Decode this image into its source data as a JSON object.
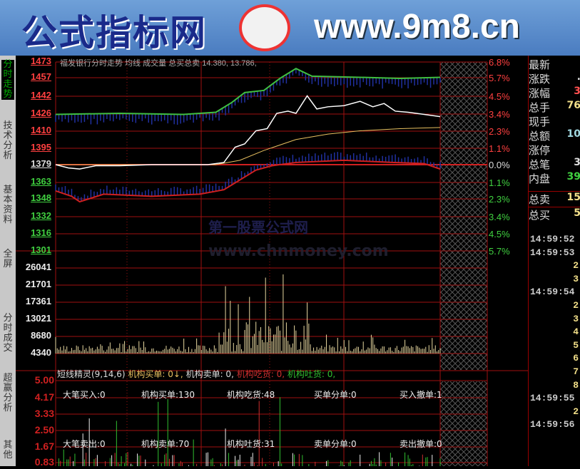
{
  "banner": {
    "site_name": "公式指标网",
    "url": "www.9m8.cn"
  },
  "watermark": {
    "line1": "第一股票公式网",
    "line2": "www.chnmoney.com"
  },
  "sidebar": {
    "tabs": [
      "分时走势",
      "技术分析",
      "基本资料",
      "全屏",
      "分时成交",
      "超赢分析",
      "其他"
    ]
  },
  "price_pane": {
    "header": "福发银行分时走势 均线 成交量 总买总卖 14.380, 13.786,",
    "prev_close": 1379,
    "price_ticks": [
      "1473",
      "1457",
      "1442",
      "1426",
      "1410",
      "1395",
      "1379",
      "1363",
      "1348",
      "1332",
      "1316",
      "1301"
    ],
    "pct_ticks": [
      "6.8%",
      "5.7%",
      "4.5%",
      "3.4%",
      "2.3%",
      "1.1%",
      "0.0%",
      "1.1%",
      "2.3%",
      "3.4%",
      "4.5%",
      "5.7%"
    ],
    "price_line": [
      [
        0,
        1379
      ],
      [
        8,
        1376
      ],
      [
        15,
        1375
      ],
      [
        25,
        1378
      ],
      [
        40,
        1378
      ],
      [
        60,
        1379
      ],
      [
        80,
        1379
      ],
      [
        95,
        1379
      ],
      [
        105,
        1381
      ],
      [
        112,
        1395
      ],
      [
        118,
        1398
      ],
      [
        125,
        1410
      ],
      [
        132,
        1412
      ],
      [
        138,
        1426
      ],
      [
        145,
        1428
      ],
      [
        150,
        1426
      ],
      [
        157,
        1442
      ],
      [
        163,
        1430
      ],
      [
        170,
        1432
      ],
      [
        180,
        1433
      ],
      [
        190,
        1437
      ],
      [
        198,
        1432
      ],
      [
        205,
        1435
      ],
      [
        212,
        1428
      ],
      [
        220,
        1427
      ],
      [
        230,
        1425
      ],
      [
        240,
        1423
      ]
    ],
    "avg_line": [
      [
        0,
        1379
      ],
      [
        100,
        1379
      ],
      [
        115,
        1383
      ],
      [
        130,
        1392
      ],
      [
        150,
        1402
      ],
      [
        170,
        1407
      ],
      [
        190,
        1410
      ],
      [
        215,
        1412
      ],
      [
        240,
        1413
      ]
    ],
    "upper_line": [
      [
        0,
        1425
      ],
      [
        40,
        1426
      ],
      [
        80,
        1425
      ],
      [
        100,
        1427
      ],
      [
        110,
        1436
      ],
      [
        118,
        1445
      ],
      [
        130,
        1447
      ],
      [
        140,
        1458
      ],
      [
        150,
        1467
      ],
      [
        160,
        1460
      ],
      [
        190,
        1459
      ],
      [
        215,
        1458
      ],
      [
        240,
        1459
      ]
    ],
    "lower_line": [
      [
        0,
        1355
      ],
      [
        10,
        1350
      ],
      [
        15,
        1345
      ],
      [
        30,
        1352
      ],
      [
        60,
        1350
      ],
      [
        90,
        1352
      ],
      [
        105,
        1356
      ],
      [
        115,
        1365
      ],
      [
        125,
        1374
      ],
      [
        135,
        1378
      ],
      [
        150,
        1381
      ],
      [
        180,
        1383
      ],
      [
        210,
        1381
      ],
      [
        230,
        1380
      ],
      [
        240,
        1375
      ]
    ]
  },
  "volume_pane": {
    "ticks": [
      "26041",
      "21701",
      "17361",
      "13021",
      "8680",
      "4340"
    ]
  },
  "indicator_pane": {
    "title": "短线精灵(9,14,6)",
    "params": [
      {
        "label": "机构买单: 0↓,",
        "color": "#e8c060"
      },
      {
        "label": "机构卖单: 0,",
        "color": "#ddd"
      },
      {
        "label": "机构吃货: 0,",
        "color": "#d03030"
      },
      {
        "label": "机构吐货: 0,",
        "color": "#30c030"
      }
    ],
    "ticks": [
      "5.00",
      "4.17",
      "3.33",
      "2.50",
      "1.67",
      "0.83"
    ],
    "stats_row1": [
      "大笔买入:0",
      "机构买单:130",
      "机构吃货:48",
      "买单分单:0",
      "买入撤单:1"
    ],
    "stats_row2": [
      "大笔卖出:0",
      "机构卖单:70",
      "机构吐货:31",
      "卖单分单:0",
      "卖出撤单:0"
    ]
  },
  "quote_panel": {
    "rows": [
      {
        "label": "最新",
        "value": ""
      },
      {
        "label": "涨跌",
        "value": "."
      },
      {
        "label": "涨幅",
        "value": "3"
      },
      {
        "label": "总手",
        "value": "76"
      },
      {
        "label": "现手",
        "value": ""
      },
      {
        "label": "总额",
        "value": "10"
      },
      {
        "label": "涨停",
        "value": ""
      },
      {
        "label": "总笔",
        "value": "3"
      },
      {
        "label": "内盘",
        "value": "39"
      },
      {
        "label": "总卖",
        "value": "15"
      },
      {
        "label": "总买",
        "value": "5"
      }
    ],
    "ticks": [
      {
        "t": "14:59:52"
      },
      {
        "t": "14:59:53"
      },
      {
        "n": "2"
      },
      {
        "n": "3"
      },
      {
        "t": "14:59:54"
      },
      {
        "n": "2"
      },
      {
        "n": "3"
      },
      {
        "n": "4"
      },
      {
        "n": "5"
      },
      {
        "n": "6"
      },
      {
        "n": "7"
      },
      {
        "n": "8"
      },
      {
        "t": "14:59:55"
      },
      {
        "n": "2"
      },
      {
        "t": "14:59:56"
      }
    ]
  },
  "colors": {
    "grid": "#a01010",
    "price": "#ffffff",
    "avg": "#e8c060",
    "upper": "#40c040",
    "lower": "#d02020",
    "up_text": "#ff4040",
    "down_text": "#40d040"
  }
}
